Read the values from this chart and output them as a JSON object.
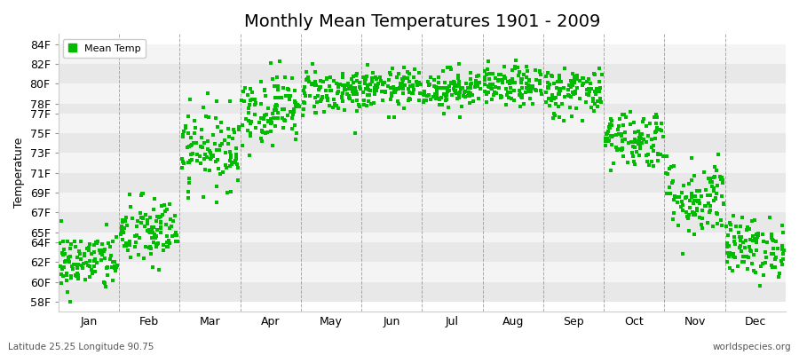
{
  "title": "Monthly Mean Temperatures 1901 - 2009",
  "ylabel": "Temperature",
  "xlabel_bottom_left": "Latitude 25.25 Longitude 90.75",
  "xlabel_bottom_right": "worldspecies.org",
  "legend_label": "Mean Temp",
  "dot_color": "#00BB00",
  "bg_color": "#FFFFFF",
  "plot_bg_color": "#FFFFFF",
  "band_color_dark": "#E8E8E8",
  "band_color_light": "#F4F4F4",
  "dashed_line_color": "#888888",
  "yticks": [
    58,
    60,
    62,
    64,
    65,
    67,
    69,
    71,
    73,
    75,
    77,
    78,
    80,
    82,
    84
  ],
  "ytick_labels": [
    "58F",
    "60F",
    "62F",
    "64F",
    "65F",
    "67F",
    "69F",
    "71F",
    "73F",
    "75F",
    "77F",
    "78F",
    "80F",
    "82F",
    "84F"
  ],
  "months": [
    "Jan",
    "Feb",
    "Mar",
    "Apr",
    "May",
    "Jun",
    "Jul",
    "Aug",
    "Sep",
    "Oct",
    "Nov",
    "Dec"
  ],
  "month_mean_temps_F": [
    62.0,
    65.0,
    73.5,
    77.5,
    79.2,
    79.5,
    79.5,
    79.7,
    79.2,
    74.5,
    68.5,
    63.5
  ],
  "month_std_temps_F": [
    1.5,
    1.8,
    2.0,
    1.8,
    1.2,
    1.0,
    1.0,
    1.0,
    1.3,
    1.5,
    2.0,
    1.5
  ],
  "n_years": 109,
  "title_fontsize": 14,
  "axis_label_fontsize": 9,
  "tick_fontsize": 9
}
